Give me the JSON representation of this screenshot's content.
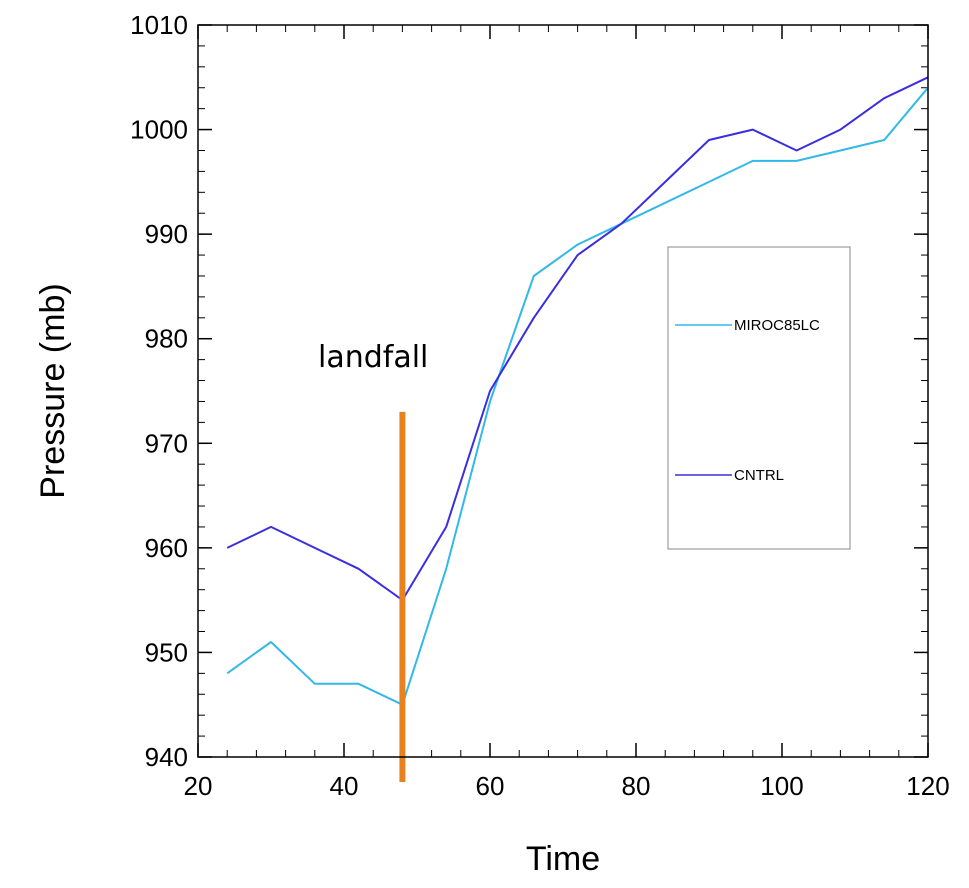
{
  "chart_data": {
    "type": "line",
    "xlabel": "Time",
    "ylabel": "Pressure (mb)",
    "xlim": [
      20,
      120
    ],
    "ylim": [
      940,
      1010
    ],
    "xticks": [
      20,
      40,
      60,
      80,
      100,
      120
    ],
    "yticks": [
      940,
      950,
      960,
      970,
      980,
      990,
      1000,
      1010
    ],
    "x_minor_step": 4,
    "y_minor_step": 2,
    "grid": false,
    "legend_position": "right",
    "series": [
      {
        "name": "MIROC85LC",
        "color": "#33b8e8",
        "x": [
          24,
          30,
          36,
          42,
          48,
          54,
          60,
          66,
          72,
          78,
          84,
          90,
          96,
          102,
          108,
          114,
          120
        ],
        "y": [
          948,
          951,
          947,
          947,
          945,
          958,
          974,
          986,
          989,
          991,
          993,
          995,
          997,
          997,
          998,
          999,
          1004
        ]
      },
      {
        "name": "CNTRL",
        "color": "#3a2ee0",
        "x": [
          24,
          30,
          36,
          42,
          48,
          54,
          60,
          66,
          72,
          78,
          84,
          90,
          96,
          102,
          108,
          114,
          120
        ],
        "y": [
          960,
          962,
          960,
          958,
          955,
          962,
          975,
          982,
          988,
          991,
          995,
          999,
          1000,
          998,
          1000,
          1003,
          1005
        ]
      }
    ],
    "annotations": [
      {
        "text": "landfall",
        "x": 48,
        "line_y_top": 973,
        "color": "#e8821e"
      }
    ]
  }
}
